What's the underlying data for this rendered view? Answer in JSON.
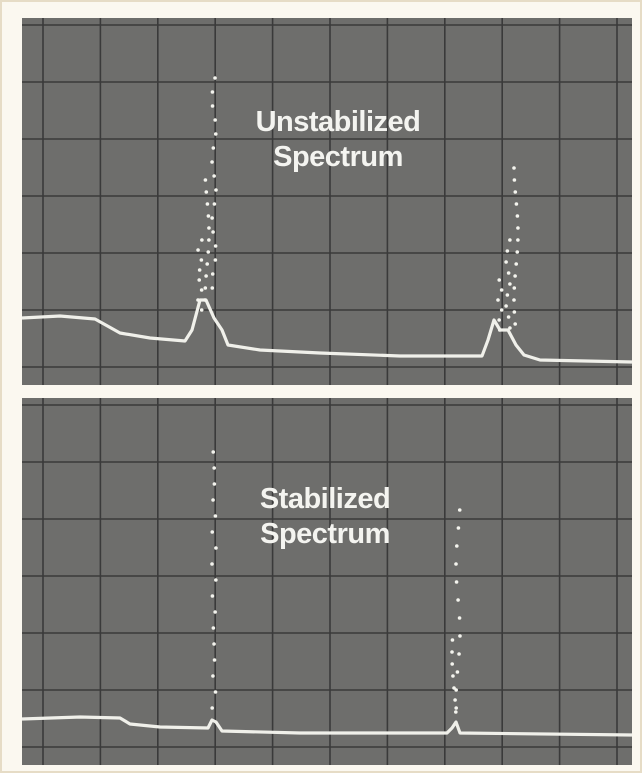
{
  "panels": [
    {
      "title": [
        "Unstabilized",
        "Spectrum"
      ]
    },
    {
      "title": [
        "Stabilized",
        "Spectrum"
      ]
    }
  ]
}
